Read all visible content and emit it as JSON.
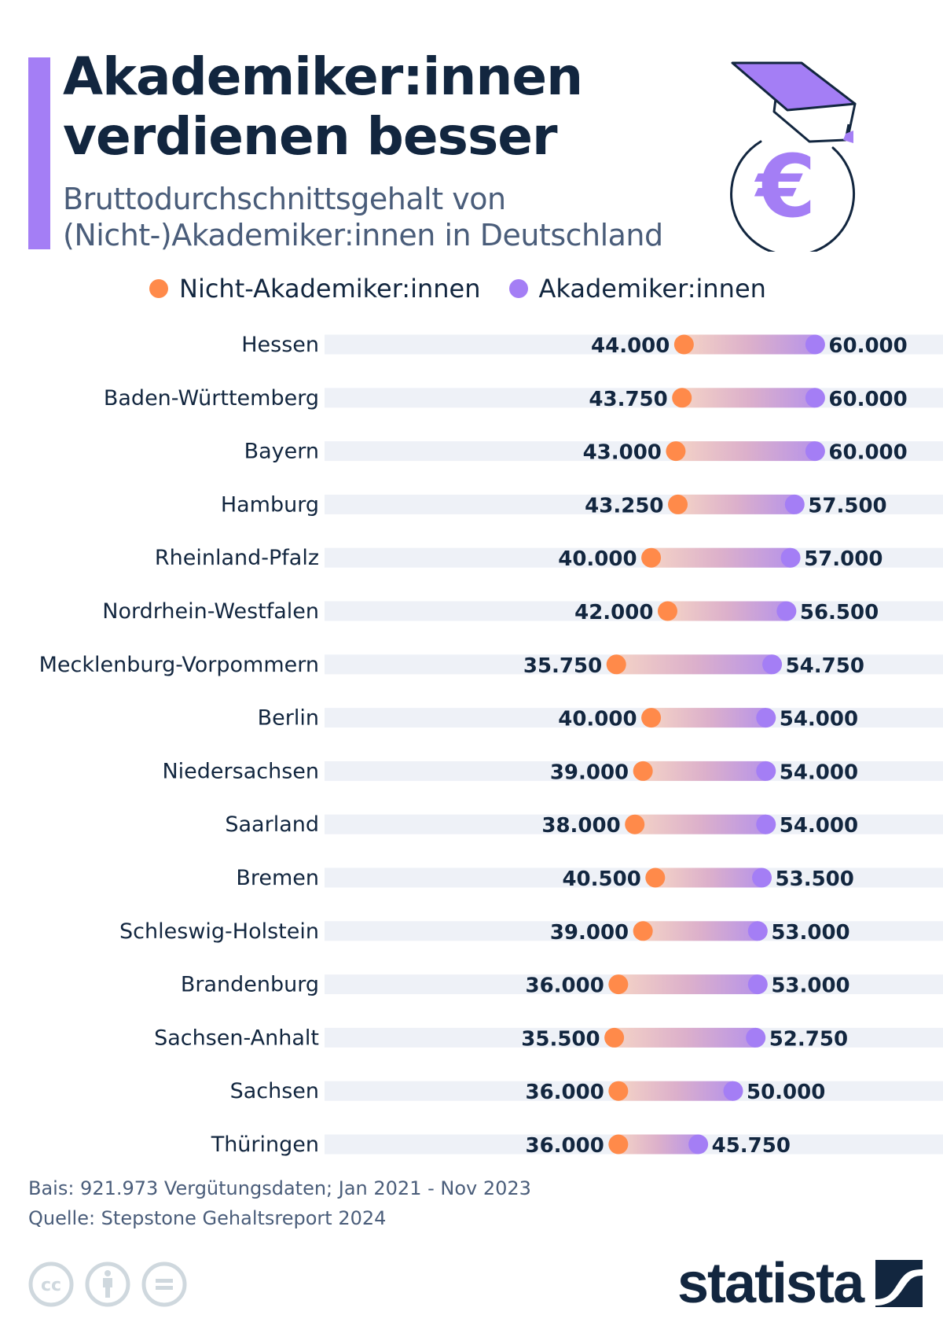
{
  "header": {
    "title_line1": "Akademiker:innen",
    "title_line2": "verdienen besser",
    "subtitle_line1": "Bruttodurchschnittsgehalt von",
    "subtitle_line2": "(Nicht-)Akademiker:innen in Deutschland",
    "icon": "graduation-cap-euro-coin-icon"
  },
  "colors": {
    "accent": "#a47ef5",
    "non_academic": "#ff8a4a",
    "academic": "#a47ef5",
    "bar_background": "#eef1f7",
    "text_dark": "#12263f",
    "text_muted": "#4a5d7a",
    "license_gray": "#cfd8de"
  },
  "chart_data": {
    "type": "dumbbell",
    "title": "Akademiker:innen verdienen besser",
    "subtitle": "Bruttodurchschnittsgehalt von (Nicht-)Akademiker:innen in Deutschland",
    "xlabel": "",
    "ylabel": "",
    "xlim": [
      0,
      75000
    ],
    "grid": false,
    "legend_position": "top",
    "categories": [
      "Hessen",
      "Baden-Württemberg",
      "Bayern",
      "Hamburg",
      "Rheinland-Pfalz",
      "Nordrhein-Westfalen",
      "Mecklenburg-Vorpommern",
      "Berlin",
      "Niedersachsen",
      "Saarland",
      "Bremen",
      "Schleswig-Holstein",
      "Brandenburg",
      "Sachsen-Anhalt",
      "Sachsen",
      "Thüringen"
    ],
    "series": [
      {
        "name": "Nicht-Akademiker:innen",
        "color": "#ff8a4a",
        "values": [
          44000,
          43750,
          43000,
          43250,
          40000,
          42000,
          35750,
          40000,
          39000,
          38000,
          40500,
          39000,
          36000,
          35500,
          36000,
          36000
        ],
        "labels": [
          "44.000",
          "43.750",
          "43.000",
          "43.250",
          "40.000",
          "42.000",
          "35.750",
          "40.000",
          "39.000",
          "38.000",
          "40.500",
          "39.000",
          "36.000",
          "35.500",
          "36.000",
          "36.000"
        ]
      },
      {
        "name": "Akademiker:innen",
        "color": "#a47ef5",
        "values": [
          60000,
          60000,
          60000,
          57500,
          57000,
          56500,
          54750,
          54000,
          54000,
          54000,
          53500,
          53000,
          53000,
          52750,
          50000,
          45750
        ],
        "labels": [
          "60.000",
          "60.000",
          "60.000",
          "57.500",
          "57.000",
          "56.500",
          "54.750",
          "54.000",
          "54.000",
          "54.000",
          "53.500",
          "53.000",
          "53.000",
          "52.750",
          "50.000",
          "45.750"
        ]
      }
    ]
  },
  "footer": {
    "basis": "Bais: 921.973 Vergütungsdaten; Jan 2021 - Nov 2023",
    "source": "Quelle: Stepstone Gehaltsreport 2024",
    "license_icons": [
      "creative-commons-icon",
      "attribution-icon",
      "no-derivatives-icon"
    ],
    "brand": "statista"
  }
}
